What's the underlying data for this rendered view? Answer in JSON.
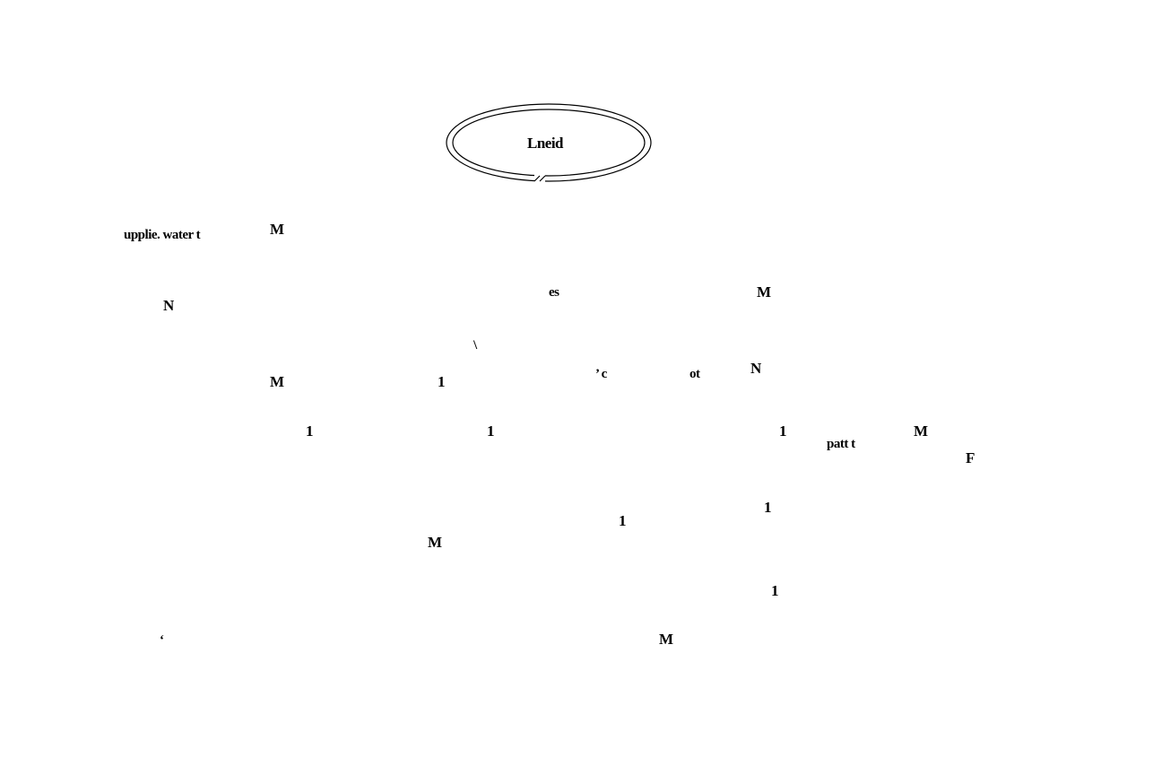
{
  "entity": {
    "label": "Lneid",
    "shape": "double-ellipse"
  },
  "fragments": {
    "supplies": "upplie. water t",
    "m1": "M",
    "n1": "N",
    "es": "es",
    "m2": "M",
    "tick1": "\\",
    "m3": "M",
    "one1": "1",
    "of": "’ c",
    "of2": "ot",
    "n2": "N",
    "one2": "1",
    "one3": "1",
    "one4": "1",
    "part": "patt  t",
    "m4": "M",
    "f": "F",
    "one5": "1",
    "one6": "1",
    "m5": "M",
    "one7": "1",
    "dot": "‘",
    "m6": "M"
  },
  "colors": {
    "ink": "#000000",
    "background": "#ffffff"
  }
}
